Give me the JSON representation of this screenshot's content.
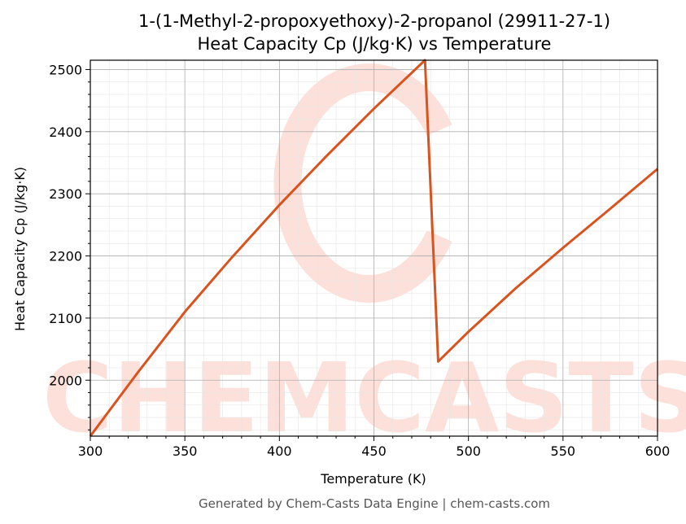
{
  "colors": {
    "line": "#d9531e",
    "watermark": "#fde0d9",
    "grid_major": "#b0b0b0",
    "grid_minor": "#e6e6e6",
    "footer": "#555555"
  },
  "watermark": {
    "text": "CHEMCASTS"
  },
  "footer": {
    "text": "Generated by Chem-Casts Data Engine | chem-casts.com"
  },
  "chart_data": {
    "type": "line",
    "title": "1-(1-Methyl-2-propoxyethoxy)-2-propanol (29911-27-1)",
    "subtitle": "Heat Capacity Cp (J/kg·K) vs Temperature",
    "xlabel": "Temperature (K)",
    "ylabel": "Heat Capacity Cp (J/kg·K)",
    "xlim": [
      300,
      600
    ],
    "ylim": [
      1910,
      2515
    ],
    "xticks": [
      300,
      350,
      400,
      450,
      500,
      550,
      600
    ],
    "yticks": [
      2000,
      2100,
      2200,
      2300,
      2400,
      2500
    ],
    "grid": true,
    "legend": "none",
    "series": [
      {
        "x": [
          300,
          325,
          350,
          375,
          400,
          425,
          450,
          477,
          484,
          500,
          525,
          550,
          575,
          600
        ],
        "y": [
          1910,
          2012,
          2110,
          2198,
          2282,
          2361,
          2437,
          2515,
          2030,
          2078,
          2148,
          2213,
          2276,
          2340
        ]
      }
    ]
  }
}
